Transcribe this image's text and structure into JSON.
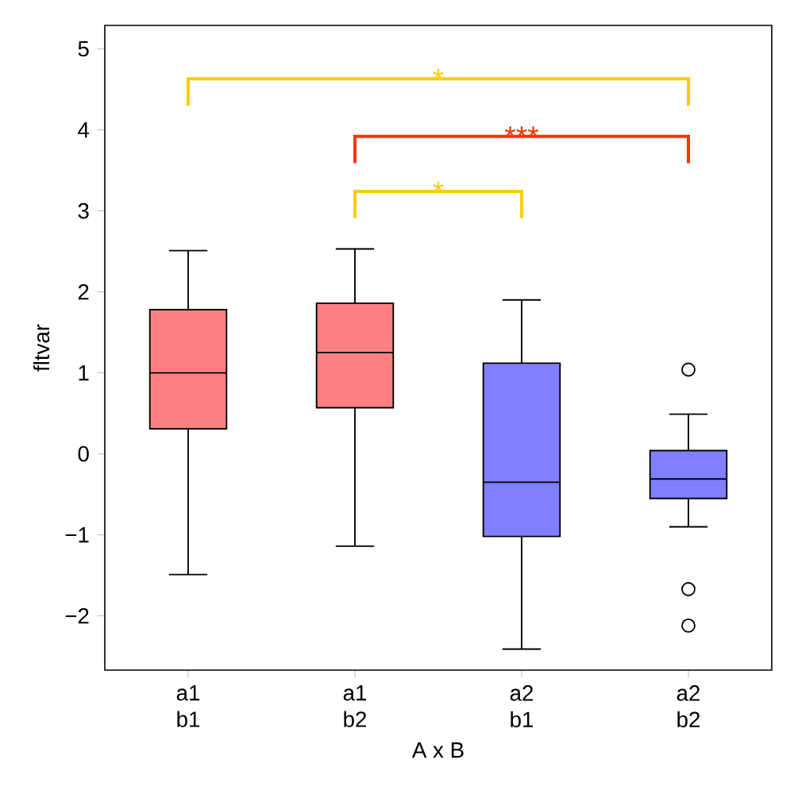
{
  "chart_data": {
    "type": "box",
    "xlabel": "A x B",
    "ylabel": "fltvar",
    "categories": [
      "a1 b1",
      "a1 b2",
      "a2 b1",
      "a2 b2"
    ],
    "colors": [
      "#ff8080",
      "#ff8080",
      "#8080ff",
      "#8080ff"
    ],
    "boxes": [
      {
        "low": -1.49,
        "q1": 0.31,
        "median": 1.0,
        "q3": 1.78,
        "high": 2.51
      },
      {
        "low": -1.14,
        "q1": 0.57,
        "median": 1.25,
        "q3": 1.86,
        "high": 2.53
      },
      {
        "low": -2.41,
        "q1": -1.02,
        "median": -0.35,
        "q3": 1.12,
        "high": 1.9
      },
      {
        "low": -0.9,
        "q1": -0.55,
        "median": -0.31,
        "q3": 0.04,
        "high": 0.49,
        "outliers": [
          1.04,
          -1.67,
          -2.12
        ]
      }
    ],
    "ylim": [
      -2.67,
      5.29
    ],
    "yticks": [
      {
        "value": -2,
        "label": "−2"
      },
      {
        "value": -1,
        "label": "−1"
      },
      0,
      1,
      2,
      3,
      4,
      5
    ],
    "annotations": [
      "*",
      "***",
      "*"
    ]
  }
}
